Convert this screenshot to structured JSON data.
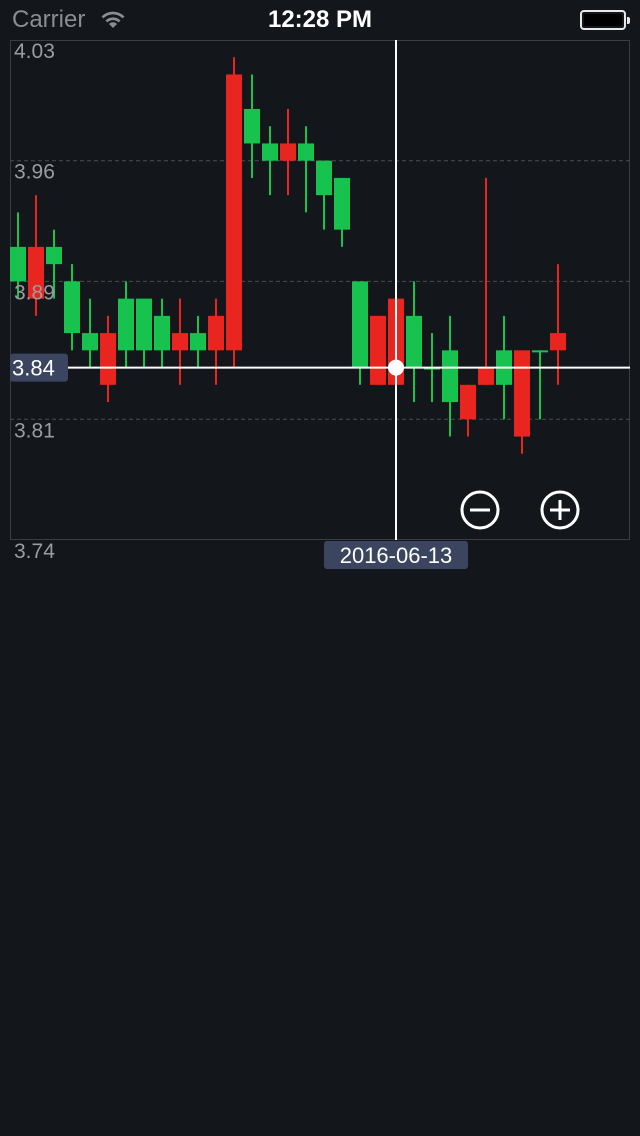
{
  "status_bar": {
    "carrier": "Carrier",
    "time": "12:28 PM"
  },
  "zoom_controls": {
    "zoom_out_icon": "minus-circle-icon",
    "zoom_in_icon": "plus-circle-icon"
  },
  "colors": {
    "up": "#17c24f",
    "down": "#e8261f",
    "background": "#13161b",
    "crosshair": "#ffffff",
    "label_background": "#3b4560"
  },
  "chart_data": {
    "type": "candlestick",
    "ylim": [
      3.74,
      4.03
    ],
    "y_ticks": [
      "4.03",
      "3.96",
      "3.89",
      "3.81",
      "3.74"
    ],
    "crosshair": {
      "date": "2016-06-13",
      "price": "3.84"
    },
    "candles": [
      {
        "open": 3.89,
        "close": 3.91,
        "high": 3.93,
        "low": 3.88
      },
      {
        "open": 3.91,
        "close": 3.88,
        "high": 3.94,
        "low": 3.87
      },
      {
        "open": 3.9,
        "close": 3.91,
        "high": 3.92,
        "low": 3.88
      },
      {
        "open": 3.86,
        "close": 3.89,
        "high": 3.9,
        "low": 3.85
      },
      {
        "open": 3.85,
        "close": 3.86,
        "high": 3.88,
        "low": 3.84
      },
      {
        "open": 3.86,
        "close": 3.83,
        "high": 3.87,
        "low": 3.82
      },
      {
        "open": 3.85,
        "close": 3.88,
        "high": 3.89,
        "low": 3.84
      },
      {
        "open": 3.85,
        "close": 3.88,
        "high": 3.88,
        "low": 3.84
      },
      {
        "open": 3.85,
        "close": 3.87,
        "high": 3.88,
        "low": 3.84
      },
      {
        "open": 3.86,
        "close": 3.85,
        "high": 3.88,
        "low": 3.83
      },
      {
        "open": 3.85,
        "close": 3.86,
        "high": 3.87,
        "low": 3.84
      },
      {
        "open": 3.87,
        "close": 3.85,
        "high": 3.88,
        "low": 3.83
      },
      {
        "open": 4.01,
        "close": 3.85,
        "high": 4.02,
        "low": 3.84
      },
      {
        "open": 3.97,
        "close": 3.99,
        "high": 4.01,
        "low": 3.95
      },
      {
        "open": 3.96,
        "close": 3.97,
        "high": 3.98,
        "low": 3.94
      },
      {
        "open": 3.97,
        "close": 3.96,
        "high": 3.99,
        "low": 3.94
      },
      {
        "open": 3.96,
        "close": 3.97,
        "high": 3.98,
        "low": 3.93
      },
      {
        "open": 3.94,
        "close": 3.96,
        "high": 3.96,
        "low": 3.92
      },
      {
        "open": 3.92,
        "close": 3.95,
        "high": 3.95,
        "low": 3.91
      },
      {
        "open": 3.84,
        "close": 3.89,
        "high": 3.89,
        "low": 3.83
      },
      {
        "open": 3.87,
        "close": 3.83,
        "high": 3.87,
        "low": 3.83
      },
      {
        "open": 3.88,
        "close": 3.83,
        "high": 3.9,
        "low": 3.82
      },
      {
        "open": 3.84,
        "close": 3.87,
        "high": 3.89,
        "low": 3.82
      },
      {
        "open": 3.84,
        "close": 3.84,
        "high": 3.86,
        "low": 3.82
      },
      {
        "open": 3.82,
        "close": 3.85,
        "high": 3.87,
        "low": 3.8
      },
      {
        "open": 3.83,
        "close": 3.81,
        "high": 3.83,
        "low": 3.8
      },
      {
        "open": 3.84,
        "close": 3.83,
        "high": 3.95,
        "low": 3.83
      },
      {
        "open": 3.83,
        "close": 3.85,
        "high": 3.87,
        "low": 3.81
      },
      {
        "open": 3.85,
        "close": 3.8,
        "high": 3.85,
        "low": 3.79
      },
      {
        "open": 3.85,
        "close": 3.85,
        "high": 3.85,
        "low": 3.81
      },
      {
        "open": 3.86,
        "close": 3.85,
        "high": 3.9,
        "low": 3.83
      }
    ]
  }
}
